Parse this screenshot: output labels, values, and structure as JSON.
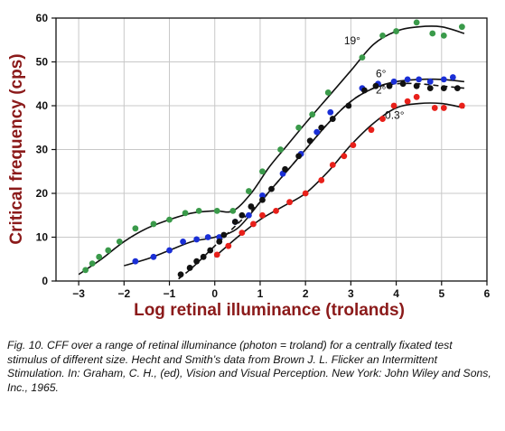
{
  "chart_data": {
    "type": "scatter",
    "title": "",
    "xlabel": "Log retinal illuminance (trolands)",
    "ylabel": "Critical frequency (cps)",
    "xlim": [
      -3.5,
      6
    ],
    "ylim": [
      0,
      60
    ],
    "xticks": [
      -3,
      -2,
      -1,
      0,
      1,
      2,
      3,
      4,
      5,
      6
    ],
    "xtick_labels": [
      "−3",
      "−2",
      "−1",
      "0",
      "1",
      "2",
      "3",
      "4",
      "5",
      "6"
    ],
    "yticks": [
      0,
      10,
      20,
      30,
      40,
      50,
      60
    ],
    "ytick_labels": [
      "0",
      "10",
      "20",
      "30",
      "40",
      "50",
      "60"
    ],
    "grid": true,
    "legend": "none",
    "series": [
      {
        "name": "19°",
        "color": "#3a9a4a",
        "label_at": [
          2.85,
          54
        ],
        "points": [
          [
            -2.85,
            2.5
          ],
          [
            -2.7,
            4
          ],
          [
            -2.55,
            5.5
          ],
          [
            -2.35,
            7
          ],
          [
            -2.1,
            9
          ],
          [
            -1.75,
            12
          ],
          [
            -1.35,
            13
          ],
          [
            -1.0,
            14
          ],
          [
            -0.65,
            15.5
          ],
          [
            -0.35,
            16
          ],
          [
            0.05,
            16
          ],
          [
            0.4,
            16
          ],
          [
            0.75,
            20.5
          ],
          [
            1.05,
            25
          ],
          [
            1.45,
            30
          ],
          [
            1.85,
            35
          ],
          [
            2.15,
            38
          ],
          [
            2.5,
            43
          ],
          [
            3.25,
            51
          ],
          [
            3.7,
            56
          ],
          [
            4.0,
            57
          ],
          [
            4.45,
            59
          ],
          [
            4.8,
            56.5
          ],
          [
            5.05,
            56
          ],
          [
            5.45,
            58
          ]
        ],
        "curve": [
          [
            -3.0,
            1.5
          ],
          [
            -2.5,
            5
          ],
          [
            -2.0,
            9
          ],
          [
            -1.5,
            12
          ],
          [
            -1.0,
            14
          ],
          [
            -0.5,
            15.5
          ],
          [
            0.0,
            16
          ],
          [
            0.4,
            16
          ],
          [
            0.8,
            20
          ],
          [
            1.2,
            26
          ],
          [
            1.6,
            31
          ],
          [
            2.0,
            36
          ],
          [
            2.5,
            42
          ],
          [
            3.0,
            48
          ],
          [
            3.5,
            54
          ],
          [
            4.0,
            57
          ],
          [
            4.5,
            58
          ],
          [
            5.0,
            58
          ],
          [
            5.5,
            56.5
          ]
        ]
      },
      {
        "name": "6°",
        "color": "#1a2fd6",
        "label_at": [
          3.55,
          46.5
        ],
        "points": [
          [
            -1.75,
            4.5
          ],
          [
            -1.35,
            5.5
          ],
          [
            -1.0,
            7
          ],
          [
            -0.7,
            9
          ],
          [
            -0.4,
            9.5
          ],
          [
            -0.15,
            10
          ],
          [
            0.1,
            10
          ],
          [
            0.45,
            13.5
          ],
          [
            0.75,
            15
          ],
          [
            1.05,
            19.5
          ],
          [
            1.5,
            24.5
          ],
          [
            1.9,
            29
          ],
          [
            2.25,
            34
          ],
          [
            2.55,
            38.5
          ],
          [
            3.25,
            44
          ],
          [
            3.6,
            45
          ],
          [
            3.95,
            45.5
          ],
          [
            4.25,
            46
          ],
          [
            4.5,
            46
          ],
          [
            4.75,
            45.5
          ],
          [
            5.05,
            46
          ],
          [
            5.25,
            46.5
          ]
        ],
        "curve": [
          [
            -2.0,
            3.5
          ],
          [
            -1.5,
            5
          ],
          [
            -1.0,
            7
          ],
          [
            -0.5,
            9
          ],
          [
            0.0,
            10
          ],
          [
            0.5,
            12
          ],
          [
            1.0,
            18
          ],
          [
            1.5,
            24
          ],
          [
            2.0,
            30
          ],
          [
            2.5,
            36
          ],
          [
            3.0,
            41
          ],
          [
            3.5,
            44
          ],
          [
            4.0,
            45.5
          ],
          [
            4.5,
            46
          ],
          [
            5.0,
            46
          ],
          [
            5.5,
            45.5
          ]
        ]
      },
      {
        "name": "2°",
        "color": "#111111",
        "label_at": [
          3.55,
          42.8
        ],
        "points": [
          [
            -0.75,
            1.5
          ],
          [
            -0.55,
            3
          ],
          [
            -0.4,
            4.5
          ],
          [
            -0.25,
            5.5
          ],
          [
            -0.1,
            7
          ],
          [
            0.1,
            9
          ],
          [
            0.2,
            10.5
          ],
          [
            0.45,
            13.5
          ],
          [
            0.6,
            15
          ],
          [
            0.8,
            17
          ],
          [
            1.05,
            18.5
          ],
          [
            1.25,
            21
          ],
          [
            1.55,
            25.5
          ],
          [
            1.85,
            28.5
          ],
          [
            2.1,
            32
          ],
          [
            2.35,
            35
          ],
          [
            2.6,
            37
          ],
          [
            2.95,
            40
          ],
          [
            3.3,
            43.5
          ],
          [
            3.55,
            44.5
          ],
          [
            3.85,
            44.5
          ],
          [
            4.15,
            45
          ],
          [
            4.45,
            44.5
          ],
          [
            4.75,
            44
          ],
          [
            5.05,
            44
          ],
          [
            5.35,
            44
          ]
        ],
        "curve": [
          [
            -0.8,
            0.5
          ],
          [
            -0.5,
            3
          ],
          [
            0.0,
            8
          ],
          [
            0.5,
            13
          ],
          [
            1.0,
            18
          ],
          [
            1.5,
            24
          ],
          [
            2.0,
            30
          ],
          [
            2.5,
            36
          ],
          [
            3.0,
            41
          ],
          [
            3.5,
            44
          ],
          [
            4.0,
            45
          ],
          [
            4.5,
            45
          ],
          [
            5.0,
            44.5
          ],
          [
            5.5,
            44
          ]
        ]
      },
      {
        "name": "0.3°",
        "color": "#e8201a",
        "label_at": [
          3.75,
          37
        ],
        "points": [
          [
            0.05,
            6
          ],
          [
            0.3,
            8
          ],
          [
            0.6,
            11
          ],
          [
            0.85,
            13
          ],
          [
            1.05,
            15
          ],
          [
            1.35,
            16
          ],
          [
            1.65,
            18
          ],
          [
            2.0,
            20
          ],
          [
            2.35,
            23
          ],
          [
            2.6,
            26.5
          ],
          [
            2.85,
            28.5
          ],
          [
            3.05,
            31
          ],
          [
            3.45,
            34.5
          ],
          [
            3.7,
            37
          ],
          [
            3.95,
            40
          ],
          [
            4.25,
            41
          ],
          [
            4.45,
            42
          ],
          [
            4.85,
            39.5
          ],
          [
            5.05,
            39.5
          ],
          [
            5.45,
            40
          ]
        ],
        "curve": [
          [
            0.0,
            5.5
          ],
          [
            0.5,
            10
          ],
          [
            1.0,
            14
          ],
          [
            1.5,
            17
          ],
          [
            2.0,
            20
          ],
          [
            2.5,
            25
          ],
          [
            3.0,
            31
          ],
          [
            3.5,
            36
          ],
          [
            4.0,
            39.5
          ],
          [
            4.5,
            40.5
          ],
          [
            5.0,
            40.5
          ],
          [
            5.5,
            39.5
          ]
        ]
      }
    ]
  },
  "caption": "Fig. 10. CFF over a range of retinal illuminance (photon = troland) for a centrally fixated test stimulus of different size. Hecht and Smith’s data from Brown J. L. Flicker an Intermittent Stimulation. In: Graham, C. H., (ed), Vision and Visual Perception. New York: John Wiley and Sons, Inc., 1965."
}
